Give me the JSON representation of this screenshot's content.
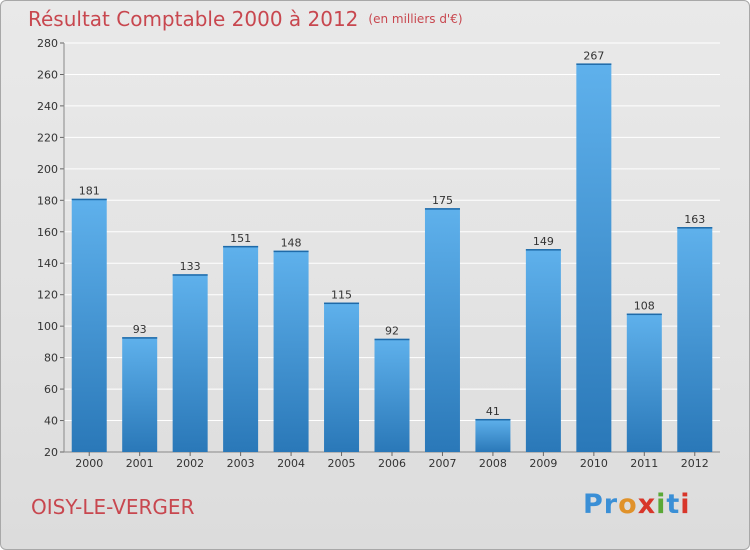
{
  "header": {
    "title": "Résultat Comptable 2000 à 2012",
    "unit": "(en milliers d'€)"
  },
  "footer": {
    "place": "OISY-LE-VERGER",
    "logo_text": "Proxiti",
    "logo_colors": [
      "#3a8fd6",
      "#3a8fd6",
      "#e0922a",
      "#d8362a",
      "#5aa837",
      "#3a8fd6",
      "#d8362a"
    ]
  },
  "colors": {
    "title": "#c8474f",
    "bar_light": "#5fb1ec",
    "bar_dark": "#2a78b8",
    "grid": "#ffffff"
  },
  "chart_data": {
    "type": "bar",
    "title": "Résultat Comptable 2000 à 2012",
    "subtitle": "(en milliers d'€)",
    "categories": [
      "2000",
      "2001",
      "2002",
      "2003",
      "2004",
      "2005",
      "2006",
      "2007",
      "2008",
      "2009",
      "2010",
      "2011",
      "2012"
    ],
    "values": [
      181,
      93,
      133,
      151,
      148,
      115,
      92,
      175,
      41,
      149,
      267,
      108,
      163
    ],
    "ylim": [
      20,
      280
    ],
    "yticks": [
      20,
      40,
      60,
      80,
      100,
      120,
      140,
      160,
      180,
      200,
      220,
      240,
      260,
      280
    ],
    "grid": true,
    "data_labels": true
  }
}
